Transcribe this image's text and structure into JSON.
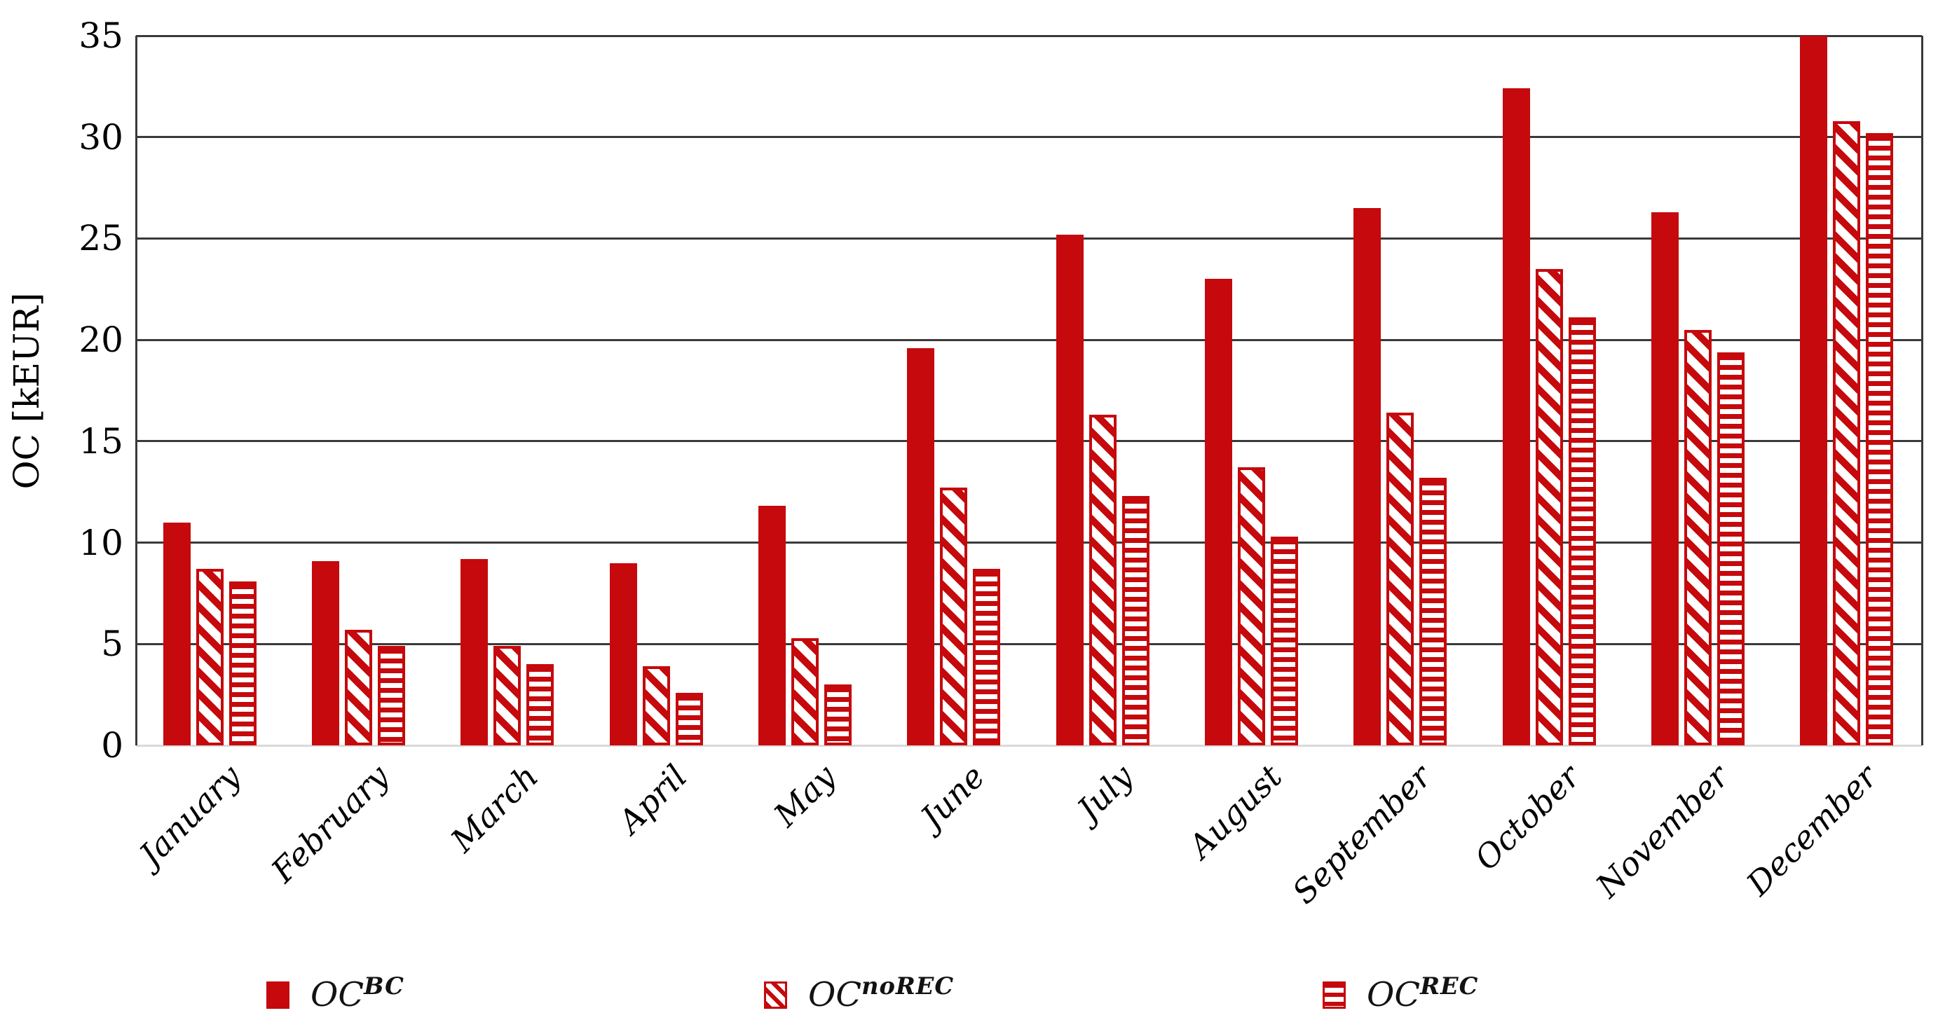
{
  "chart_data": {
    "type": "bar",
    "title": "",
    "xlabel": "",
    "ylabel": "OC [kEUR]",
    "ylim": [
      0,
      35
    ],
    "yticks": [
      0,
      5,
      10,
      15,
      20,
      25,
      30,
      35
    ],
    "grid": true,
    "legend_position": "bottom",
    "categories": [
      "January",
      "February",
      "March",
      "April",
      "May",
      "June",
      "July",
      "August",
      "September",
      "October",
      "November",
      "December"
    ],
    "series": [
      {
        "name": "OC^BC",
        "label_base": "OC",
        "label_sup": "BC",
        "pattern": "solid",
        "values": [
          11.0,
          9.1,
          9.2,
          9.0,
          11.8,
          19.6,
          25.2,
          23.0,
          26.5,
          32.4,
          26.3,
          35.0
        ]
      },
      {
        "name": "OC^noREC",
        "label_base": "OC",
        "label_sup": "noREC",
        "pattern": "diagonal",
        "values": [
          8.7,
          5.7,
          4.9,
          3.9,
          5.3,
          12.7,
          16.3,
          13.7,
          16.4,
          23.5,
          20.5,
          30.8
        ]
      },
      {
        "name": "OC^REC",
        "label_base": "OC",
        "label_sup": "REC",
        "pattern": "horizontal",
        "values": [
          8.1,
          4.9,
          4.0,
          2.6,
          3.0,
          8.7,
          12.3,
          10.3,
          13.2,
          21.1,
          19.4,
          30.2
        ]
      }
    ],
    "colors": {
      "bar_red": "#c5090c",
      "gridline": "#3a3a3a",
      "baseline": "#d9d9d9",
      "background": "#ffffff"
    }
  }
}
